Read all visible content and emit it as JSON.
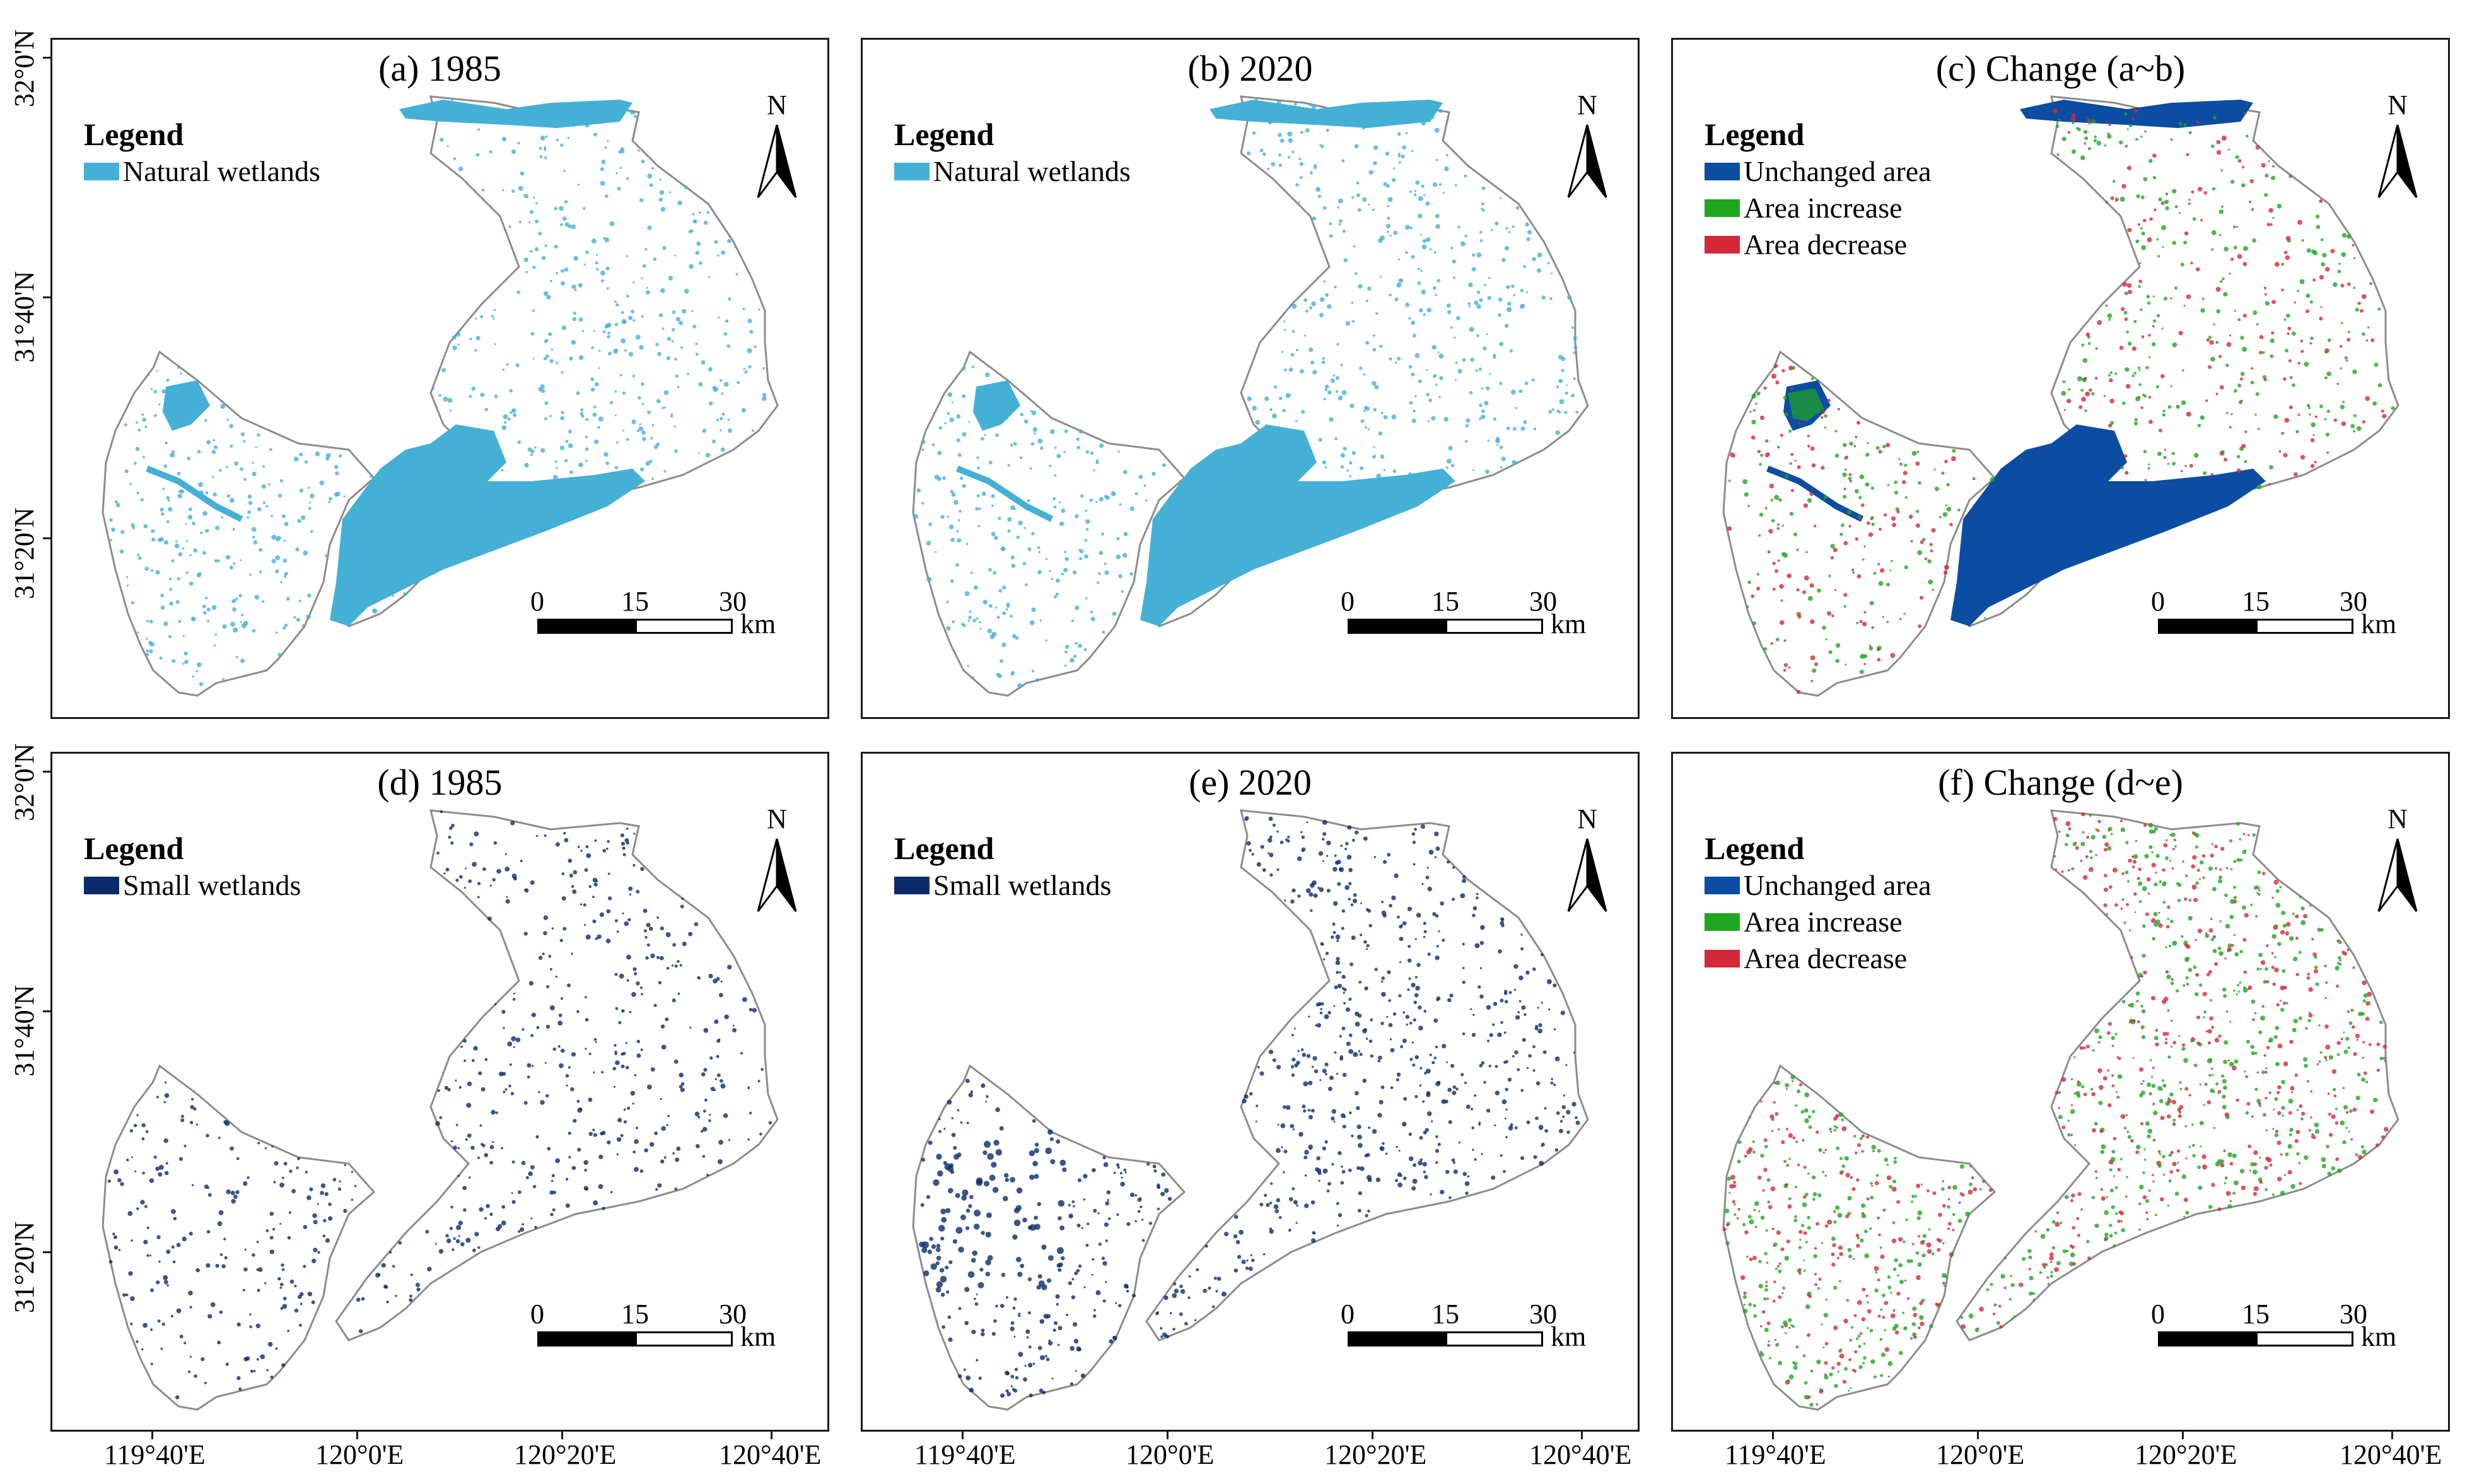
{
  "panels": [
    {
      "title": "(a) 1985",
      "legend_title": "Legend",
      "legend_items": [
        {
          "label": "Natural wetlands",
          "color": "#45b0d5"
        }
      ],
      "map_kind": "natural"
    },
    {
      "title": "(b) 2020",
      "legend_title": "Legend",
      "legend_items": [
        {
          "label": "Natural wetlands",
          "color": "#45b0d5"
        }
      ],
      "map_kind": "natural"
    },
    {
      "title": "(c) Change (a~b)",
      "legend_title": "Legend",
      "legend_items": [
        {
          "label": "Unchanged area",
          "color": "#0a4da2"
        },
        {
          "label": "Area increase",
          "color": "#1fa51f"
        },
        {
          "label": "Area decrease",
          "color": "#d2283a"
        }
      ],
      "map_kind": "change"
    },
    {
      "title": "(d) 1985",
      "legend_title": "Legend",
      "legend_items": [
        {
          "label": "Small wetlands",
          "color": "#0b2a6b"
        }
      ],
      "map_kind": "small"
    },
    {
      "title": "(e) 2020",
      "legend_title": "Legend",
      "legend_items": [
        {
          "label": "Small wetlands",
          "color": "#0b2a6b"
        }
      ],
      "map_kind": "small2"
    },
    {
      "title": "(f) Change (d~e)",
      "legend_title": "Legend",
      "legend_items": [
        {
          "label": "Unchanged area",
          "color": "#0a4da2"
        },
        {
          "label": "Area increase",
          "color": "#1fa51f"
        },
        {
          "label": "Area decrease",
          "color": "#d2283a"
        }
      ],
      "map_kind": "change2"
    }
  ],
  "north_label": "N",
  "scale_bar": {
    "ticks": [
      "0",
      "15",
      "30"
    ],
    "unit": "km"
  },
  "x_axis_labels": [
    "119°40'E",
    "120°0'E",
    "120°20'E",
    "120°40'E"
  ],
  "y_axis_labels": [
    "32°0'N",
    "31°40'N",
    "31°20'N"
  ],
  "colors": {
    "natural": "#45b0d5",
    "small": "#0b2a6b",
    "unchanged": "#0a4da2",
    "increase": "#1fa51f",
    "decrease": "#d2283a",
    "boundary": "#8c8c8c"
  }
}
